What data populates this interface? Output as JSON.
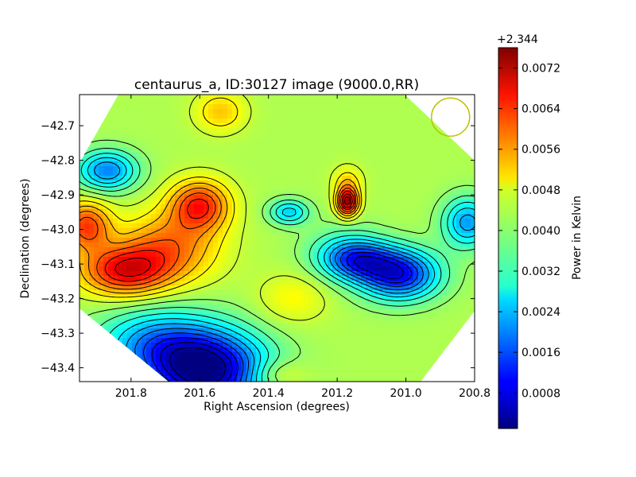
{
  "chart_data": {
    "type": "heatmap",
    "title": "centaurus_a, ID:30127 image (9000.0,RR)",
    "xlabel": "Right Ascension (degrees)",
    "ylabel": "Declination (degrees)",
    "xlim": [
      201.95,
      200.8
    ],
    "ylim": [
      -43.44,
      -42.61
    ],
    "x_ticks": [
      "201.8",
      "201.6",
      "201.4",
      "201.2",
      "201.0",
      "200.8"
    ],
    "x_tick_values": [
      201.8,
      201.6,
      201.4,
      201.2,
      201.0,
      200.8
    ],
    "y_ticks": [
      "−42.7",
      "−42.8",
      "−42.9",
      "−43.0",
      "−43.1",
      "−43.2",
      "−43.3",
      "−43.4"
    ],
    "y_tick_values": [
      -42.7,
      -42.8,
      -42.9,
      -43.0,
      -43.1,
      -43.2,
      -43.3,
      -43.4
    ],
    "colorbar": {
      "label": "Power in Kelvin",
      "offset_text": "+2.344",
      "range": [
        0.0001,
        0.0076
      ],
      "ticks": [
        "0.0008",
        "0.0016",
        "0.0024",
        "0.0032",
        "0.0040",
        "0.0048",
        "0.0056",
        "0.0064",
        "0.0072"
      ],
      "tick_values": [
        0.0008,
        0.0016,
        0.0024,
        0.0032,
        0.004,
        0.0048,
        0.0056,
        0.0064,
        0.0072
      ],
      "colormap": "jet"
    },
    "baseline": 0.0042,
    "features": [
      {
        "ra": 201.58,
        "dec": -43.41,
        "amp": -0.004,
        "sra": 0.12,
        "sdec": 0.08
      },
      {
        "ra": 201.73,
        "dec": -43.33,
        "amp": -0.0018,
        "sra": 0.12,
        "sdec": 0.07
      },
      {
        "ra": 201.02,
        "dec": -43.13,
        "amp": -0.0032,
        "sra": 0.08,
        "sdec": 0.05
      },
      {
        "ra": 201.14,
        "dec": -43.09,
        "amp": -0.0022,
        "sra": 0.07,
        "sdec": 0.04
      },
      {
        "ra": 201.87,
        "dec": -42.83,
        "amp": -0.0022,
        "sra": 0.06,
        "sdec": 0.04
      },
      {
        "ra": 201.34,
        "dec": -42.95,
        "amp": -0.0016,
        "sra": 0.04,
        "sdec": 0.025
      },
      {
        "ra": 200.82,
        "dec": -42.98,
        "amp": -0.002,
        "sra": 0.05,
        "sdec": 0.05
      },
      {
        "ra": 201.18,
        "dec": -43.06,
        "amp": -0.0008,
        "sra": 0.08,
        "sdec": 0.05
      },
      {
        "ra": 201.82,
        "dec": -43.12,
        "amp": 0.0024,
        "sra": 0.09,
        "sdec": 0.05
      },
      {
        "ra": 201.93,
        "dec": -42.99,
        "amp": 0.002,
        "sra": 0.05,
        "sdec": 0.05
      },
      {
        "ra": 201.6,
        "dec": -42.93,
        "amp": 0.0022,
        "sra": 0.06,
        "sdec": 0.05
      },
      {
        "ra": 201.69,
        "dec": -43.05,
        "amp": 0.0016,
        "sra": 0.1,
        "sdec": 0.07
      },
      {
        "ra": 201.54,
        "dec": -42.66,
        "amp": 0.001,
        "sra": 0.05,
        "sdec": 0.04
      },
      {
        "ra": 201.17,
        "dec": -42.92,
        "amp": 0.0032,
        "sra": 0.022,
        "sdec": 0.028
      },
      {
        "ra": 201.17,
        "dec": -42.86,
        "amp": 0.0008,
        "sra": 0.03,
        "sdec": 0.03
      },
      {
        "ra": 201.33,
        "dec": -43.2,
        "amp": 0.0006,
        "sra": 0.07,
        "sdec": 0.05
      },
      {
        "ra": 201.38,
        "dec": -43.42,
        "amp": 0.0008,
        "sra": 0.06,
        "sdec": 0.03
      }
    ],
    "beam": {
      "ra": 200.87,
      "dec": -42.675,
      "color": "#bfbf00"
    }
  }
}
